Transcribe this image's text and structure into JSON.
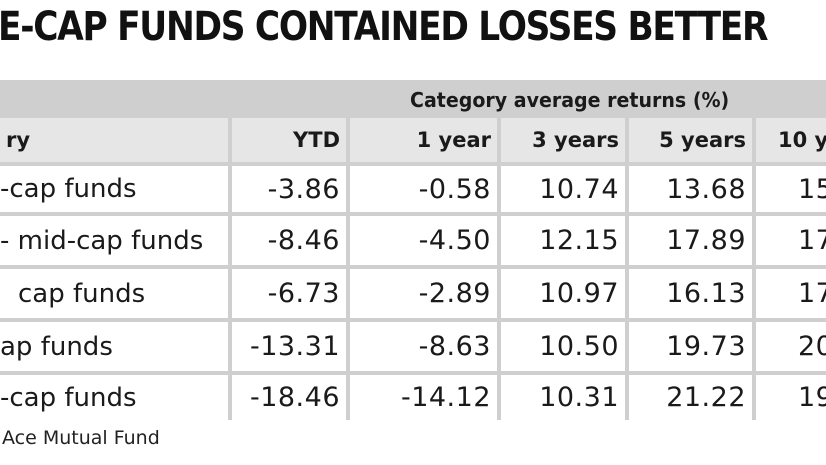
{
  "title": "E-CAP FUNDS CONTAINED LOSSES BETTER",
  "category_header": "Category average returns (%)",
  "columns": {
    "category": "ry",
    "ytd": "YTD",
    "y1": "1 year",
    "y3": "3 years",
    "y5": "5 years",
    "y10": "10 y"
  },
  "rows": [
    {
      "name": "-cap funds",
      "ytd": "-3.86",
      "y1": "-0.58",
      "y3": "10.74",
      "y5": "13.68",
      "y10": "15"
    },
    {
      "name": "- mid-cap funds",
      "ytd": "-8.46",
      "y1": "-4.50",
      "y3": "12.15",
      "y5": "17.89",
      "y10": "17"
    },
    {
      "name": "cap funds",
      "ytd": "-6.73",
      "y1": "-2.89",
      "y3": "10.97",
      "y5": "16.13",
      "y10": "17"
    },
    {
      "name": "ap funds",
      "ytd": "-13.31",
      "y1": "-8.63",
      "y3": "10.50",
      "y5": "19.73",
      "y10": "20"
    },
    {
      "name": "-cap funds",
      "ytd": "-18.46",
      "y1": "-14.12",
      "y3": "10.31",
      "y5": "21.22",
      "y10": "19"
    }
  ],
  "source": "Ace Mutual Fund"
}
